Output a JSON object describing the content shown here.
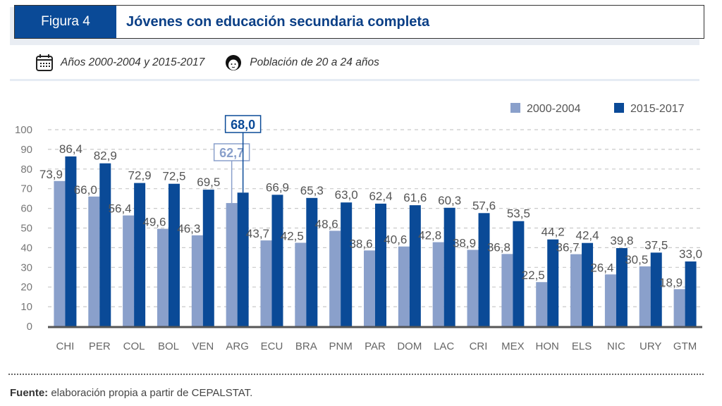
{
  "header": {
    "figure_label": "Figura 4",
    "title": "Jóvenes con educación secundaria completa"
  },
  "meta": {
    "years_icon": "calendar-icon",
    "years_text": "Años 2000-2004 y 2015-2017",
    "population_icon": "person-face-icon",
    "population_text": "Población de 20 a 24 años"
  },
  "colors": {
    "series_2000": "#8aa0cb",
    "series_2015": "#0a4a97",
    "header_blue": "#0a4a97"
  },
  "chart_data": {
    "type": "bar",
    "title": "Jóvenes con educación secundaria completa",
    "xlabel": "",
    "ylabel": "",
    "ylim": [
      0,
      100
    ],
    "yticks": [
      0,
      10,
      20,
      30,
      40,
      50,
      60,
      70,
      80,
      90,
      100
    ],
    "grid": true,
    "legend_position": "top-right",
    "categories": [
      "CHI",
      "PER",
      "COL",
      "BOL",
      "VEN",
      "ARG",
      "ECU",
      "BRA",
      "PNM",
      "PAR",
      "DOM",
      "LAC",
      "CRI",
      "MEX",
      "HON",
      "ELS",
      "NIC",
      "URY",
      "GTM"
    ],
    "series": [
      {
        "name": "2000-2004",
        "values": [
          73.9,
          66.0,
          56.4,
          49.6,
          46.3,
          62.7,
          43.7,
          42.5,
          48.6,
          38.6,
          40.6,
          42.8,
          38.9,
          36.8,
          22.5,
          36.7,
          26.4,
          30.5,
          18.9
        ]
      },
      {
        "name": "2015-2017",
        "values": [
          86.4,
          82.9,
          72.9,
          72.5,
          69.5,
          68.0,
          66.9,
          65.3,
          63.0,
          62.4,
          61.6,
          60.3,
          57.6,
          53.5,
          44.2,
          42.4,
          39.8,
          37.5,
          33.0
        ]
      }
    ],
    "labels": {
      "2000-2004": [
        "73,9",
        "66,0",
        "56,4",
        "49,6",
        "46,3",
        "62,7",
        "43,7",
        "42,5",
        "48,6",
        "38,6",
        "40,6",
        "42,8",
        "38,9",
        "36,8",
        "22,5",
        "36,7",
        "26,4",
        "30,5",
        "18,9"
      ],
      "2015-2017": [
        "86,4",
        "82,9",
        "72,9",
        "72,5",
        "69,5",
        "68,0",
        "66,9",
        "65,3",
        "63,0",
        "62,4",
        "61,6",
        "60,3",
        "57,6",
        "53,5",
        "44,2",
        "42,4",
        "39,8",
        "37,5",
        "33,0"
      ]
    },
    "highlighted_category": "ARG"
  },
  "footer": {
    "source_label": "Fuente:",
    "source_text": " elaboración propia a partir de CEPALSTAT."
  }
}
